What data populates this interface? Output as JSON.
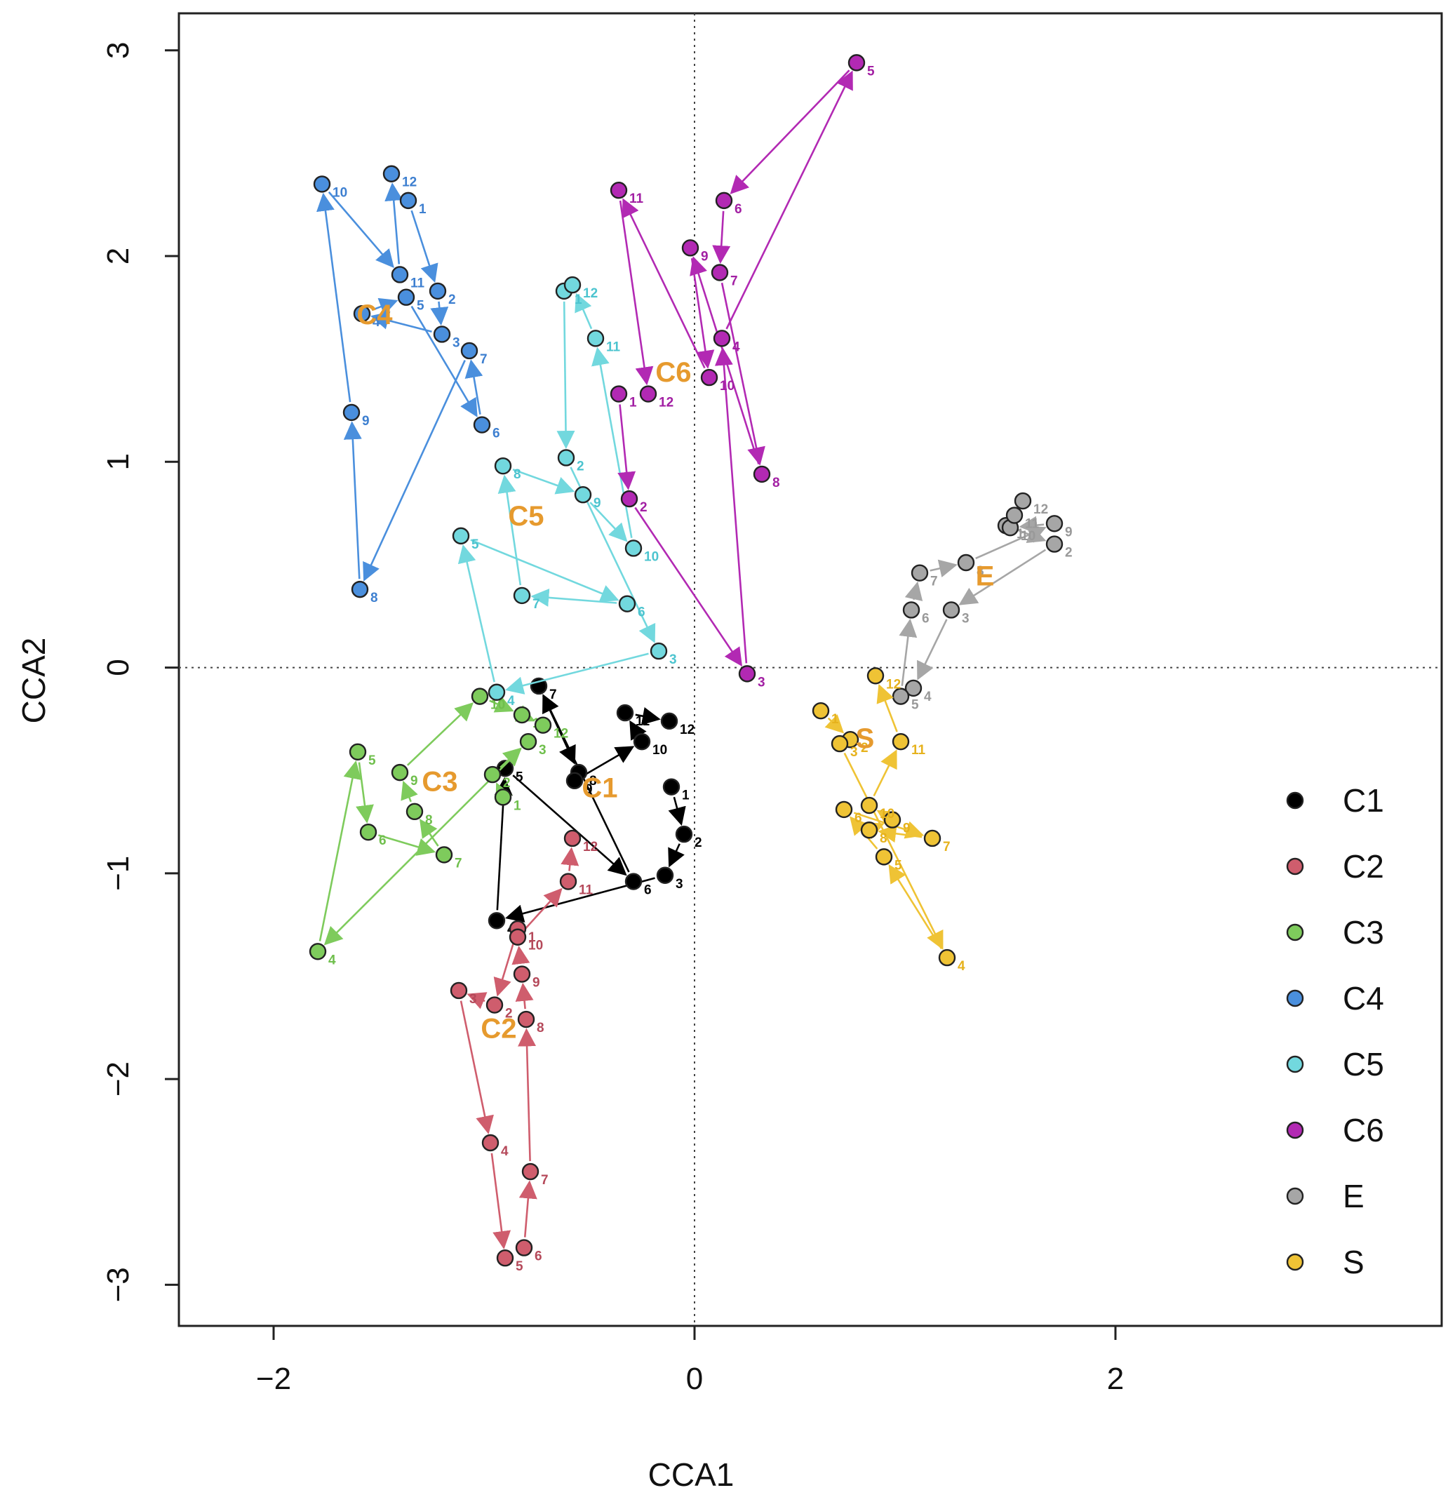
{
  "chart_data": {
    "type": "scatter",
    "xlabel": "CCA1",
    "ylabel": "CCA2",
    "xlim": [
      -2.45,
      3.55
    ],
    "ylim": [
      -3.2,
      3.18
    ],
    "xticks": [
      -2,
      0,
      2
    ],
    "yticks": [
      -3,
      -2,
      -1,
      0,
      1,
      2,
      3
    ],
    "xtick_labels": [
      "−2",
      "0",
      "2"
    ],
    "ytick_labels": [
      "−3",
      "−2",
      "−1",
      "0",
      "1",
      "2",
      "3"
    ],
    "reference_lines": {
      "x": 0,
      "y": 0,
      "style": "dotted"
    },
    "legend_position": "bottom-right",
    "legend": [
      {
        "name": "C1",
        "color": "#000000"
      },
      {
        "name": "C2",
        "color": "#cf5d6d"
      },
      {
        "name": "C3",
        "color": "#7ecb5c"
      },
      {
        "name": "C4",
        "color": "#4a8fdd"
      },
      {
        "name": "C5",
        "color": "#72d8de"
      },
      {
        "name": "C6",
        "color": "#b229b3"
      },
      {
        "name": "E",
        "color": "#a6a6a6"
      },
      {
        "name": "S",
        "color": "#efc335"
      }
    ],
    "series": [
      {
        "name": "C1",
        "color": "#000000",
        "label_color": "#000000",
        "group_label_position": [
          -0.45,
          -0.63
        ],
        "points": [
          {
            "month": "1",
            "x": -0.11,
            "y": -0.58
          },
          {
            "month": "2",
            "x": -0.05,
            "y": -0.81
          },
          {
            "month": "3",
            "x": -0.14,
            "y": -1.01
          },
          {
            "month": "4",
            "x": -0.94,
            "y": -1.23
          },
          {
            "month": "5",
            "x": -0.9,
            "y": -0.49
          },
          {
            "month": "6",
            "x": -0.29,
            "y": -1.04
          },
          {
            "month": "7",
            "x": -0.74,
            "y": -0.09
          },
          {
            "month": "8",
            "x": -0.55,
            "y": -0.51
          },
          {
            "month": "9",
            "x": -0.57,
            "y": -0.55
          },
          {
            "month": "10",
            "x": -0.25,
            "y": -0.36
          },
          {
            "month": "11",
            "x": -0.33,
            "y": -0.22
          },
          {
            "month": "12",
            "x": -0.12,
            "y": -0.26
          }
        ]
      },
      {
        "name": "C2",
        "color": "#cf5d6d",
        "label_color": "#b5495a",
        "group_label_position": [
          -0.93,
          -1.8
        ],
        "points": [
          {
            "month": "1",
            "x": -0.84,
            "y": -1.27
          },
          {
            "month": "2",
            "x": -0.95,
            "y": -1.64
          },
          {
            "month": "3",
            "x": -1.12,
            "y": -1.57
          },
          {
            "month": "4",
            "x": -0.97,
            "y": -2.31
          },
          {
            "month": "5",
            "x": -0.9,
            "y": -2.87
          },
          {
            "month": "6",
            "x": -0.81,
            "y": -2.82
          },
          {
            "month": "7",
            "x": -0.78,
            "y": -2.45
          },
          {
            "month": "8",
            "x": -0.8,
            "y": -1.71
          },
          {
            "month": "9",
            "x": -0.82,
            "y": -1.49
          },
          {
            "month": "10",
            "x": -0.84,
            "y": -1.31
          },
          {
            "month": "11",
            "x": -0.6,
            "y": -1.04
          },
          {
            "month": "12",
            "x": -0.58,
            "y": -0.83
          }
        ]
      },
      {
        "name": "C3",
        "color": "#7ecb5c",
        "label_color": "#6fbf4c",
        "group_label_position": [
          -1.21,
          -0.6
        ],
        "points": [
          {
            "month": "1",
            "x": -0.91,
            "y": -0.63
          },
          {
            "month": "2",
            "x": -0.96,
            "y": -0.52
          },
          {
            "month": "3",
            "x": -0.79,
            "y": -0.36
          },
          {
            "month": "4",
            "x": -1.79,
            "y": -1.38
          },
          {
            "month": "5",
            "x": -1.6,
            "y": -0.41
          },
          {
            "month": "6",
            "x": -1.55,
            "y": -0.8
          },
          {
            "month": "7",
            "x": -1.19,
            "y": -0.91
          },
          {
            "month": "8",
            "x": -1.33,
            "y": -0.7
          },
          {
            "month": "9",
            "x": -1.4,
            "y": -0.51
          },
          {
            "month": "10",
            "x": -1.02,
            "y": -0.14
          },
          {
            "month": "11",
            "x": -0.82,
            "y": -0.23
          },
          {
            "month": "12",
            "x": -0.72,
            "y": -0.28
          }
        ]
      },
      {
        "name": "C4",
        "color": "#4a8fdd",
        "label_color": "#3d7fd0",
        "group_label_position": [
          -1.52,
          1.67
        ],
        "points": [
          {
            "month": "1",
            "x": -1.36,
            "y": 2.27
          },
          {
            "month": "2",
            "x": -1.22,
            "y": 1.83
          },
          {
            "month": "3",
            "x": -1.2,
            "y": 1.62
          },
          {
            "month": "4",
            "x": -1.58,
            "y": 1.72
          },
          {
            "month": "5",
            "x": -1.37,
            "y": 1.8
          },
          {
            "month": "6",
            "x": -1.01,
            "y": 1.18
          },
          {
            "month": "7",
            "x": -1.07,
            "y": 1.54
          },
          {
            "month": "8",
            "x": -1.59,
            "y": 0.38
          },
          {
            "month": "9",
            "x": -1.63,
            "y": 1.24
          },
          {
            "month": "10",
            "x": -1.77,
            "y": 2.35
          },
          {
            "month": "11",
            "x": -1.4,
            "y": 1.91
          },
          {
            "month": "12",
            "x": -1.44,
            "y": 2.4
          }
        ]
      },
      {
        "name": "C5",
        "color": "#72d8de",
        "label_color": "#4cc4cf",
        "group_label_position": [
          -0.8,
          0.69
        ],
        "points": [
          {
            "month": "1",
            "x": -0.62,
            "y": 1.83
          },
          {
            "month": "2",
            "x": -0.61,
            "y": 1.02
          },
          {
            "month": "3",
            "x": -0.17,
            "y": 0.08
          },
          {
            "month": "4",
            "x": -0.94,
            "y": -0.12
          },
          {
            "month": "5",
            "x": -1.11,
            "y": 0.64
          },
          {
            "month": "6",
            "x": -0.32,
            "y": 0.31
          },
          {
            "month": "7",
            "x": -0.82,
            "y": 0.35
          },
          {
            "month": "8",
            "x": -0.91,
            "y": 0.98
          },
          {
            "month": "9",
            "x": -0.53,
            "y": 0.84
          },
          {
            "month": "10",
            "x": -0.29,
            "y": 0.58
          },
          {
            "month": "11",
            "x": -0.47,
            "y": 1.6
          },
          {
            "month": "12",
            "x": -0.58,
            "y": 1.86
          }
        ]
      },
      {
        "name": "C6",
        "color": "#b229b3",
        "label_color": "#a21fa3",
        "group_label_position": [
          -0.1,
          1.39
        ],
        "points": [
          {
            "month": "1",
            "x": -0.36,
            "y": 1.33
          },
          {
            "month": "2",
            "x": -0.31,
            "y": 0.82
          },
          {
            "month": "3",
            "x": 0.25,
            "y": -0.03
          },
          {
            "month": "4",
            "x": 0.13,
            "y": 1.6
          },
          {
            "month": "5",
            "x": 0.77,
            "y": 2.94
          },
          {
            "month": "6",
            "x": 0.14,
            "y": 2.27
          },
          {
            "month": "7",
            "x": 0.12,
            "y": 1.92
          },
          {
            "month": "8",
            "x": 0.32,
            "y": 0.94
          },
          {
            "month": "9",
            "x": -0.02,
            "y": 2.04
          },
          {
            "month": "10",
            "x": 0.07,
            "y": 1.41
          },
          {
            "month": "11",
            "x": -0.36,
            "y": 2.32
          },
          {
            "month": "12",
            "x": -0.22,
            "y": 1.33
          }
        ]
      },
      {
        "name": "E",
        "color": "#a6a6a6",
        "label_color": "#999999",
        "group_label_position": [
          1.38,
          0.4
        ],
        "points": [
          {
            "month": "1",
            "x": 1.48,
            "y": 0.69
          },
          {
            "month": "2",
            "x": 1.71,
            "y": 0.6
          },
          {
            "month": "3",
            "x": 1.22,
            "y": 0.28
          },
          {
            "month": "4",
            "x": 1.04,
            "y": -0.1
          },
          {
            "month": "5",
            "x": 0.98,
            "y": -0.14
          },
          {
            "month": "6",
            "x": 1.03,
            "y": 0.28
          },
          {
            "month": "7",
            "x": 1.07,
            "y": 0.46
          },
          {
            "month": "8",
            "x": 1.29,
            "y": 0.51
          },
          {
            "month": "9",
            "x": 1.71,
            "y": 0.7
          },
          {
            "month": "10",
            "x": 1.5,
            "y": 0.68
          },
          {
            "month": "11",
            "x": 1.52,
            "y": 0.74
          },
          {
            "month": "12",
            "x": 1.56,
            "y": 0.81
          }
        ]
      },
      {
        "name": "S",
        "color": "#efc335",
        "label_color": "#e6b21d",
        "group_label_position": [
          0.81,
          -0.39
        ],
        "points": [
          {
            "month": "1",
            "x": 0.6,
            "y": -0.21
          },
          {
            "month": "2",
            "x": 0.74,
            "y": -0.35
          },
          {
            "month": "3",
            "x": 0.69,
            "y": -0.37
          },
          {
            "month": "4",
            "x": 1.2,
            "y": -1.41
          },
          {
            "month": "5",
            "x": 0.9,
            "y": -0.92
          },
          {
            "month": "6",
            "x": 0.71,
            "y": -0.69
          },
          {
            "month": "7",
            "x": 1.13,
            "y": -0.83
          },
          {
            "month": "8",
            "x": 0.83,
            "y": -0.79
          },
          {
            "month": "9",
            "x": 0.94,
            "y": -0.74
          },
          {
            "month": "10",
            "x": 0.83,
            "y": -0.67
          },
          {
            "month": "11",
            "x": 0.98,
            "y": -0.36
          },
          {
            "month": "12",
            "x": 0.86,
            "y": -0.04
          }
        ]
      }
    ]
  }
}
